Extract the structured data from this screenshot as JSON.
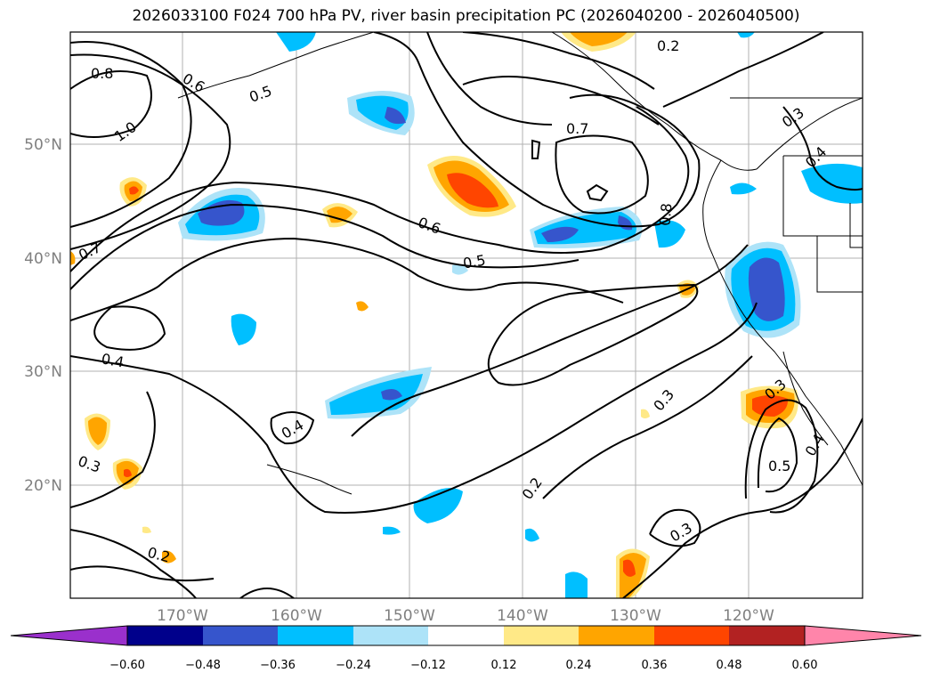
{
  "title": "2026033100 F024 700 hPa PV, river basin precipitation PC (2026040200 - 2026040500)",
  "map": {
    "lon_labels": [
      "170°W",
      "160°W",
      "150°W",
      "140°W",
      "130°W",
      "120°W"
    ],
    "lat_labels": [
      "50°N",
      "40°N",
      "30°N",
      "20°N"
    ],
    "contour_labels": [
      {
        "text": "0.8"
      },
      {
        "text": "0.6"
      },
      {
        "text": "0.5"
      },
      {
        "text": "1.0"
      },
      {
        "text": "0.2"
      },
      {
        "text": "0.3"
      },
      {
        "text": "0.4"
      },
      {
        "text": "0.7"
      },
      {
        "text": "0.6"
      },
      {
        "text": "0.5"
      },
      {
        "text": "0.8"
      },
      {
        "text": "0.7"
      },
      {
        "text": "0.4"
      },
      {
        "text": "0.4"
      },
      {
        "text": "0.3"
      },
      {
        "text": "0.2"
      },
      {
        "text": "0.3"
      },
      {
        "text": "0.2"
      },
      {
        "text": "0.3"
      },
      {
        "text": "0.5"
      },
      {
        "text": "0.4"
      },
      {
        "text": "0.3"
      }
    ]
  },
  "colorbar": {
    "ticks": [
      "−0.60",
      "−0.48",
      "−0.36",
      "−0.24",
      "−0.12",
      "0.12",
      "0.24",
      "0.36",
      "0.48",
      "0.60"
    ],
    "colors": [
      "#9a30cc",
      "#00008b",
      "#3655cc",
      "#00bfff",
      "#ade3f8",
      "#ffffff",
      "#ffe987",
      "#ffa500",
      "#ff4500",
      "#b22222",
      "#ff85aa"
    ]
  },
  "colors": {
    "neg_light": "#ade3f8",
    "neg_mid": "#00bfff",
    "neg_strong": "#3655cc",
    "pos_light": "#ffe987",
    "pos_mid": "#ffa500",
    "pos_strong": "#ff4500"
  }
}
